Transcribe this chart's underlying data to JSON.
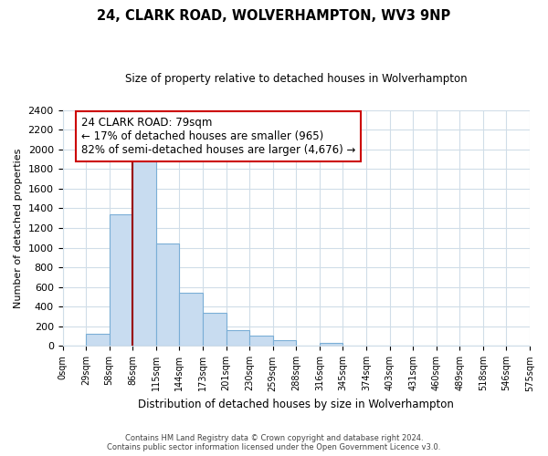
{
  "title": "24, CLARK ROAD, WOLVERHAMPTON, WV3 9NP",
  "subtitle": "Size of property relative to detached houses in Wolverhampton",
  "xlabel": "Distribution of detached houses by size in Wolverhampton",
  "ylabel": "Number of detached properties",
  "bar_labels": [
    "0sqm",
    "29sqm",
    "58sqm",
    "86sqm",
    "115sqm",
    "144sqm",
    "173sqm",
    "201sqm",
    "230sqm",
    "259sqm",
    "288sqm",
    "316sqm",
    "345sqm",
    "374sqm",
    "403sqm",
    "431sqm",
    "460sqm",
    "489sqm",
    "518sqm",
    "546sqm",
    "575sqm"
  ],
  "bar_values": [
    0,
    120,
    1340,
    1890,
    1045,
    545,
    335,
    160,
    105,
    60,
    0,
    30,
    0,
    0,
    0,
    0,
    0,
    0,
    0,
    0,
    15
  ],
  "bar_color": "#c8dcf0",
  "bar_edge_color": "#7aaed6",
  "vline_color": "#990000",
  "vline_x_index": 3,
  "annotation_text_line1": "24 CLARK ROAD: 79sqm",
  "annotation_text_line2": "← 17% of detached houses are smaller (965)",
  "annotation_text_line3": "82% of semi-detached houses are larger (4,676) →",
  "annotation_box_color": "white",
  "annotation_box_edge": "#cc0000",
  "ylim": [
    0,
    2400
  ],
  "yticks": [
    0,
    200,
    400,
    600,
    800,
    1000,
    1200,
    1400,
    1600,
    1800,
    2000,
    2200,
    2400
  ],
  "footnote1": "Contains HM Land Registry data © Crown copyright and database right 2024.",
  "footnote2": "Contains public sector information licensed under the Open Government Licence v3.0.",
  "bg_color": "#ffffff",
  "grid_color": "#d0dde8"
}
